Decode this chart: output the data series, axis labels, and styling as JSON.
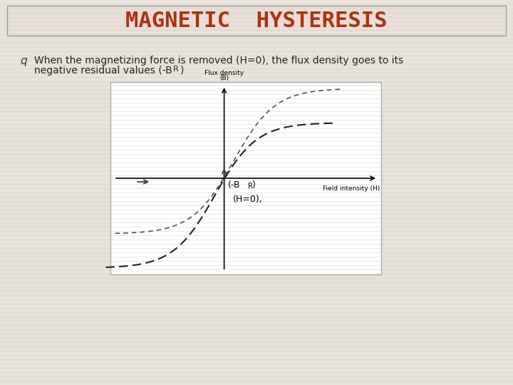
{
  "title": "MAGNETIC  HYSTERESIS",
  "title_color": "#b03010",
  "title_bg_color": "#e8e0d8",
  "title_fontsize": 22,
  "bg_color": "#e8e4dc",
  "slide_bg": "#e8e4dc",
  "text_line1": "When the magnetizing force is removed (H=0), the flux density goes to its",
  "text_line2": "negative residual values (-B",
  "text_subscript": "R",
  "text_line2_end": ")",
  "bullet_char": "□",
  "graph_bg": "#ffffff",
  "axis_label_y": "Flux density\n(B)",
  "axis_label_x": "Field intensity (H)",
  "annotation_h0": "(H=0),",
  "annotation_br": "(-B",
  "annotation_br_sub": "R",
  "annotation_br_end": ")",
  "curve_color": "#555555",
  "arrow_color": "#333333"
}
